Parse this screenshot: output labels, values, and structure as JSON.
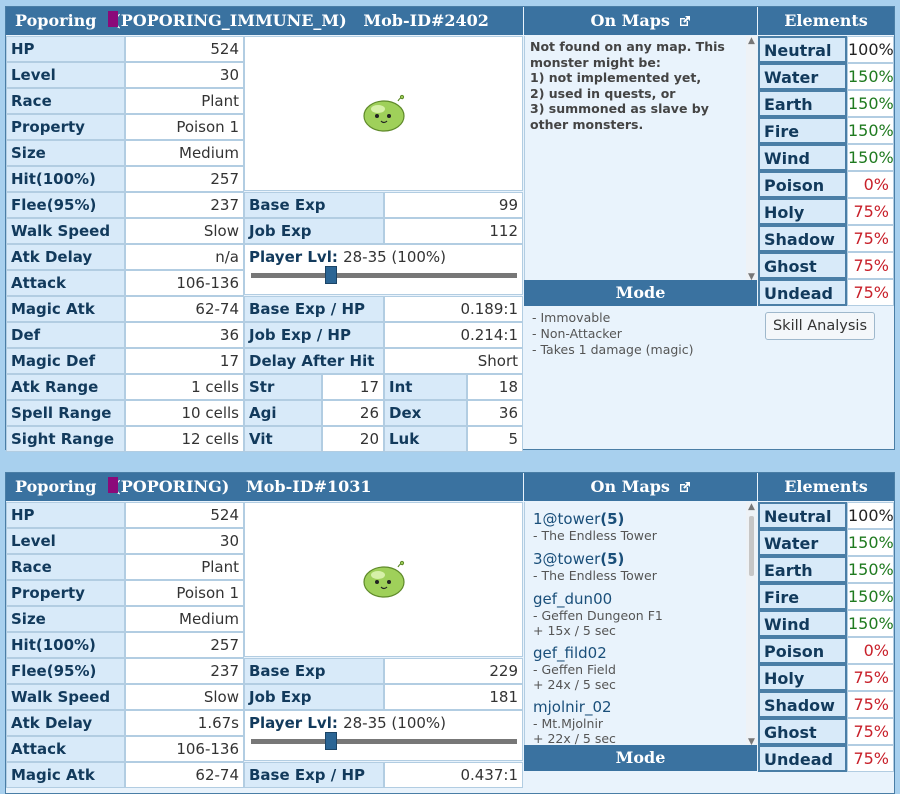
{
  "panels": [
    {
      "title": "Poporing   (POPORING_IMMUNE_M)   Mob-ID#2402",
      "maps_header": "On Maps",
      "elements_header": "Elements",
      "stats": [
        {
          "label": "HP",
          "value": "524"
        },
        {
          "label": "Level",
          "value": "30"
        },
        {
          "label": "Race",
          "value": "Plant"
        },
        {
          "label": "Property",
          "value": "Poison 1"
        },
        {
          "label": "Size",
          "value": "Medium"
        },
        {
          "label": "Hit(100%)",
          "value": "257"
        },
        {
          "label": "Flee(95%)",
          "value": "237"
        },
        {
          "label": "Walk Speed",
          "value": "Slow"
        },
        {
          "label": "Atk Delay",
          "value": "n/a"
        },
        {
          "label": "Attack",
          "value": "106-136"
        },
        {
          "label": "Magic Atk",
          "value": "62-74"
        },
        {
          "label": "Def",
          "value": "36"
        },
        {
          "label": "Magic Def",
          "value": "17"
        },
        {
          "label": "Atk Range",
          "value": "1 cells"
        },
        {
          "label": "Spell Range",
          "value": "10 cells"
        },
        {
          "label": "Sight Range",
          "value": "12 cells"
        }
      ],
      "mid": [
        {
          "label": "Base Exp",
          "value": "99"
        },
        {
          "label": "Job Exp",
          "value": "112"
        },
        {
          "label": "Base Exp / HP",
          "value": "0.189:1"
        },
        {
          "label": "Job Exp / HP",
          "value": "0.214:1"
        },
        {
          "label": "Delay After Hit",
          "value": "Short"
        }
      ],
      "player_lvl_label": "Player Lvl:",
      "player_lvl_value": "28-35 (100%)",
      "slider_fraction": 0.3,
      "attrs": [
        {
          "a": "Str",
          "av": "17",
          "b": "Int",
          "bv": "18"
        },
        {
          "a": "Agi",
          "av": "26",
          "b": "Dex",
          "bv": "36"
        },
        {
          "a": "Vit",
          "av": "20",
          "b": "Luk",
          "bv": "5"
        }
      ],
      "no_map_text": "Not found on any map. This monster might be:\n1) not implemented yet,\n2) used in quests, or\n3) summoned as slave by other monsters.",
      "mode_header": "Mode",
      "modes": [
        "- Immovable",
        "- Non-Attacker",
        "- Takes 1 damage (magic)"
      ],
      "skill_button": "Skill Analysis",
      "elements": [
        {
          "name": "Neutral",
          "value": "100%",
          "color": "#222222"
        },
        {
          "name": "Water",
          "value": "150%",
          "color": "#1f7a1f"
        },
        {
          "name": "Earth",
          "value": "150%",
          "color": "#1f7a1f"
        },
        {
          "name": "Fire",
          "value": "150%",
          "color": "#1f7a1f"
        },
        {
          "name": "Wind",
          "value": "150%",
          "color": "#1f7a1f"
        },
        {
          "name": "Poison",
          "value": "0%",
          "color": "#c8202a"
        },
        {
          "name": "Holy",
          "value": "75%",
          "color": "#c8202a"
        },
        {
          "name": "Shadow",
          "value": "75%",
          "color": "#c8202a"
        },
        {
          "name": "Ghost",
          "value": "75%",
          "color": "#c8202a"
        },
        {
          "name": "Undead",
          "value": "75%",
          "color": "#c8202a"
        }
      ]
    },
    {
      "title": "Poporing   (POPORING)   Mob-ID#1031",
      "maps_header": "On Maps",
      "elements_header": "Elements",
      "stats": [
        {
          "label": "HP",
          "value": "524"
        },
        {
          "label": "Level",
          "value": "30"
        },
        {
          "label": "Race",
          "value": "Plant"
        },
        {
          "label": "Property",
          "value": "Poison 1"
        },
        {
          "label": "Size",
          "value": "Medium"
        },
        {
          "label": "Hit(100%)",
          "value": "257"
        },
        {
          "label": "Flee(95%)",
          "value": "237"
        },
        {
          "label": "Walk Speed",
          "value": "Slow"
        },
        {
          "label": "Atk Delay",
          "value": "1.67s"
        },
        {
          "label": "Attack",
          "value": "106-136"
        },
        {
          "label": "Magic Atk",
          "value": "62-74"
        }
      ],
      "mid": [
        {
          "label": "Base Exp",
          "value": "229"
        },
        {
          "label": "Job Exp",
          "value": "181"
        },
        {
          "label": "Base Exp / HP",
          "value": "0.437:1"
        }
      ],
      "player_lvl_label": "Player Lvl:",
      "player_lvl_value": "28-35 (100%)",
      "slider_fraction": 0.3,
      "maps": [
        {
          "code": "1@tower",
          "count": "(5)",
          "name": "- The Endless Tower",
          "spawn": ""
        },
        {
          "code": "3@tower",
          "count": "(5)",
          "name": "- The Endless Tower",
          "spawn": ""
        },
        {
          "code": "gef_dun00",
          "count": "",
          "name": "- Geffen Dungeon F1",
          "spawn": "+ 15x / 5 sec"
        },
        {
          "code": "gef_fild02",
          "count": "",
          "name": "- Geffen Field",
          "spawn": "+ 24x / 5 sec"
        },
        {
          "code": "mjolnir_02",
          "count": "",
          "name": "- Mt.Mjolnir",
          "spawn": "+ 22x / 5 sec"
        }
      ],
      "mode_header": "Mode",
      "elements": [
        {
          "name": "Neutral",
          "value": "100%",
          "color": "#222222"
        },
        {
          "name": "Water",
          "value": "150%",
          "color": "#1f7a1f"
        },
        {
          "name": "Earth",
          "value": "150%",
          "color": "#1f7a1f"
        },
        {
          "name": "Fire",
          "value": "150%",
          "color": "#1f7a1f"
        },
        {
          "name": "Wind",
          "value": "150%",
          "color": "#1f7a1f"
        },
        {
          "name": "Poison",
          "value": "0%",
          "color": "#c8202a"
        },
        {
          "name": "Holy",
          "value": "75%",
          "color": "#c8202a"
        },
        {
          "name": "Shadow",
          "value": "75%",
          "color": "#c8202a"
        },
        {
          "name": "Ghost",
          "value": "75%",
          "color": "#c8202a"
        },
        {
          "name": "Undead",
          "value": "75%",
          "color": "#c8202a"
        }
      ]
    }
  ],
  "colors": {
    "header": "#3a72a0",
    "label_bg": "#d8eaf9",
    "property_swatch": "#8b0a7a",
    "slime": "#9fd05a"
  },
  "icons": {
    "external_link": "external-link-icon",
    "monster_sprite": "poporing-sprite"
  }
}
